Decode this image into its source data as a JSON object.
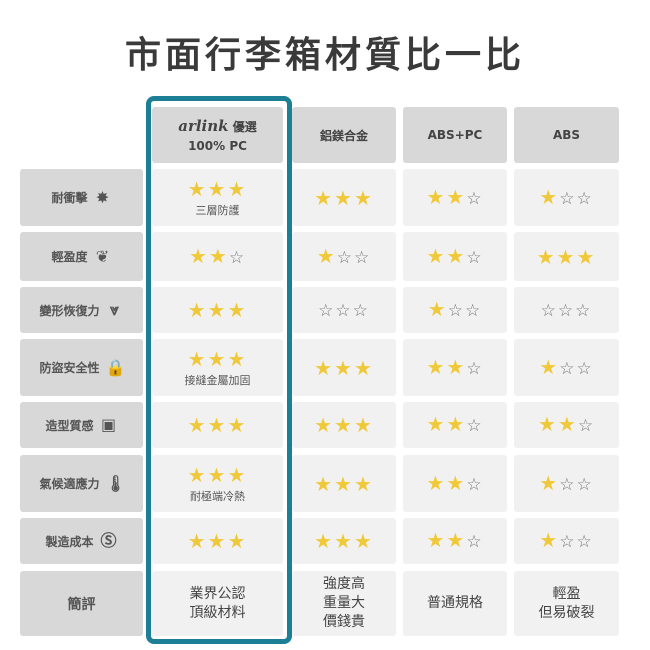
{
  "title": "市面行李箱材質比一比",
  "headers": [
    {
      "brand": "arlink",
      "line1": "優選",
      "line2": "100% PC"
    },
    {
      "line1": "鋁鎂合金"
    },
    {
      "line1": "ABS+PC"
    },
    {
      "line1": "ABS"
    }
  ],
  "rows": [
    {
      "label": "耐衝擊",
      "icon": "impact-burst-icon",
      "ratings": [
        3,
        3,
        2,
        1
      ],
      "note": "三層防護"
    },
    {
      "label": "輕盈度",
      "icon": "feather-icon",
      "ratings": [
        2,
        1,
        2,
        3
      ],
      "note": ""
    },
    {
      "label": "變形恢復力",
      "icon": "spring-back-icon",
      "ratings": [
        3,
        0,
        1,
        0
      ],
      "note": ""
    },
    {
      "label": "防盜安全性",
      "icon": "lock-icon",
      "ratings": [
        3,
        3,
        2,
        1
      ],
      "note": "接縫金屬加固"
    },
    {
      "label": "造型質感",
      "icon": "suitcase-icon",
      "ratings": [
        3,
        3,
        2,
        2
      ],
      "note": ""
    },
    {
      "label": "氣候適應力",
      "icon": "thermometer-icon",
      "ratings": [
        3,
        3,
        2,
        1
      ],
      "note": "耐極端冷熱"
    },
    {
      "label": "製造成本",
      "icon": "dollar-coin-icon",
      "ratings": [
        3,
        3,
        2,
        1
      ],
      "note": ""
    }
  ],
  "summary": {
    "label": "簡評",
    "values": [
      "業界公認\n頂級材料",
      "強度高\n重量大\n價錢貴",
      "普通規格",
      "輕盈\n但易破裂"
    ]
  },
  "colors": {
    "highlight": "#1d7f96",
    "star": "#f0c93a",
    "brand_dot": "#e0202a"
  }
}
